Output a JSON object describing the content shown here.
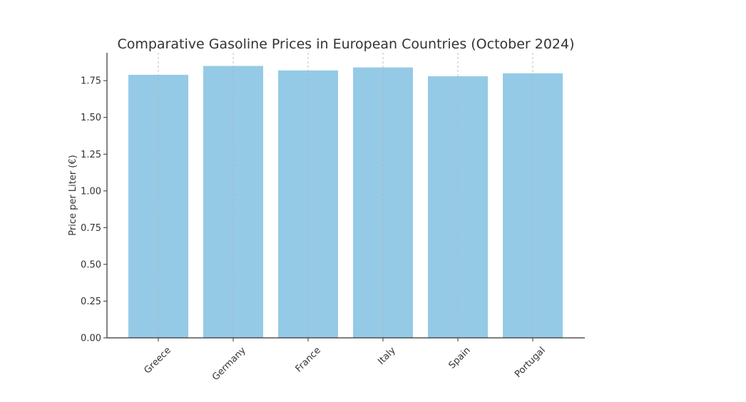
{
  "chart_data": {
    "type": "bar",
    "title": "Comparative Gasoline Prices in European Countries (October 2024)",
    "xlabel": "",
    "ylabel": "Price per Liter (€)",
    "categories": [
      "Greece",
      "Germany",
      "France",
      "Italy",
      "Spain",
      "Portugal"
    ],
    "values": [
      1.79,
      1.85,
      1.82,
      1.84,
      1.78,
      1.8
    ],
    "ylim": [
      0,
      1.94
    ],
    "yticks": [
      "0.00",
      "0.25",
      "0.50",
      "0.75",
      "1.00",
      "1.25",
      "1.50",
      "1.75"
    ],
    "grid": "vertical dashed lines at categories",
    "legend": "none",
    "bar_color": "#95cae6",
    "grid_color": "#b0b0b0",
    "axis_color": "#333333"
  }
}
